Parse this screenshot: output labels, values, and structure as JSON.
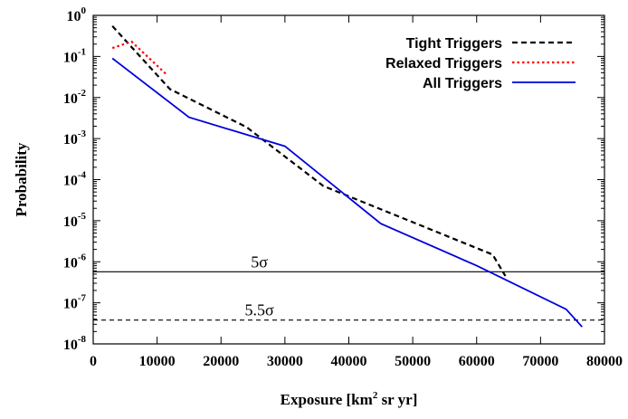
{
  "chart_data": {
    "type": "line",
    "xlabel": "Exposure [km",
    "xlabel_sup": "2",
    "xlabel_tail": " sr yr]",
    "ylabel": "Probability",
    "xlim": [
      0,
      80000
    ],
    "ylim": [
      1e-08,
      1
    ],
    "yscale": "log",
    "grid": false,
    "legend_position": "top-right",
    "x_ticks": [
      0,
      10000,
      20000,
      30000,
      40000,
      50000,
      60000,
      70000,
      80000
    ],
    "y_ticks": [
      {
        "value": 1,
        "base": "10",
        "exp": "0"
      },
      {
        "value": 0.1,
        "base": "10",
        "exp": "-1"
      },
      {
        "value": 0.01,
        "base": "10",
        "exp": "-2"
      },
      {
        "value": 0.001,
        "base": "10",
        "exp": "-3"
      },
      {
        "value": 0.0001,
        "base": "10",
        "exp": "-4"
      },
      {
        "value": 1e-05,
        "base": "10",
        "exp": "-5"
      },
      {
        "value": 1e-06,
        "base": "10",
        "exp": "-6"
      },
      {
        "value": 1e-07,
        "base": "10",
        "exp": "-7"
      },
      {
        "value": 1e-08,
        "base": "10",
        "exp": "-8"
      }
    ],
    "series": [
      {
        "name": "Tight Triggers",
        "color": "#000000",
        "style": "dashed",
        "x": [
          3000,
          12000,
          24000,
          36000,
          62500,
          64500
        ],
        "y": [
          0.55,
          0.016,
          0.0019,
          7e-05,
          1.5e-06,
          4.5e-07
        ]
      },
      {
        "name": "Relaxed Triggers",
        "color": "#ff0000",
        "style": "dotted",
        "x": [
          3000,
          6000,
          11500
        ],
        "y": [
          0.16,
          0.23,
          0.036
        ]
      },
      {
        "name": "All Triggers",
        "color": "#0000dd",
        "style": "solid",
        "x": [
          3000,
          15000,
          30000,
          45000,
          60000,
          74000,
          76500
        ],
        "y": [
          0.09,
          0.0033,
          0.00065,
          8.5e-06,
          8e-07,
          7e-08,
          2.6e-08
        ]
      }
    ],
    "reference_lines": [
      {
        "label": "5σ",
        "y": 5.7e-07,
        "style": "solid"
      },
      {
        "label": "5.5σ",
        "y": 3.8e-08,
        "style": "dashed"
      }
    ]
  }
}
